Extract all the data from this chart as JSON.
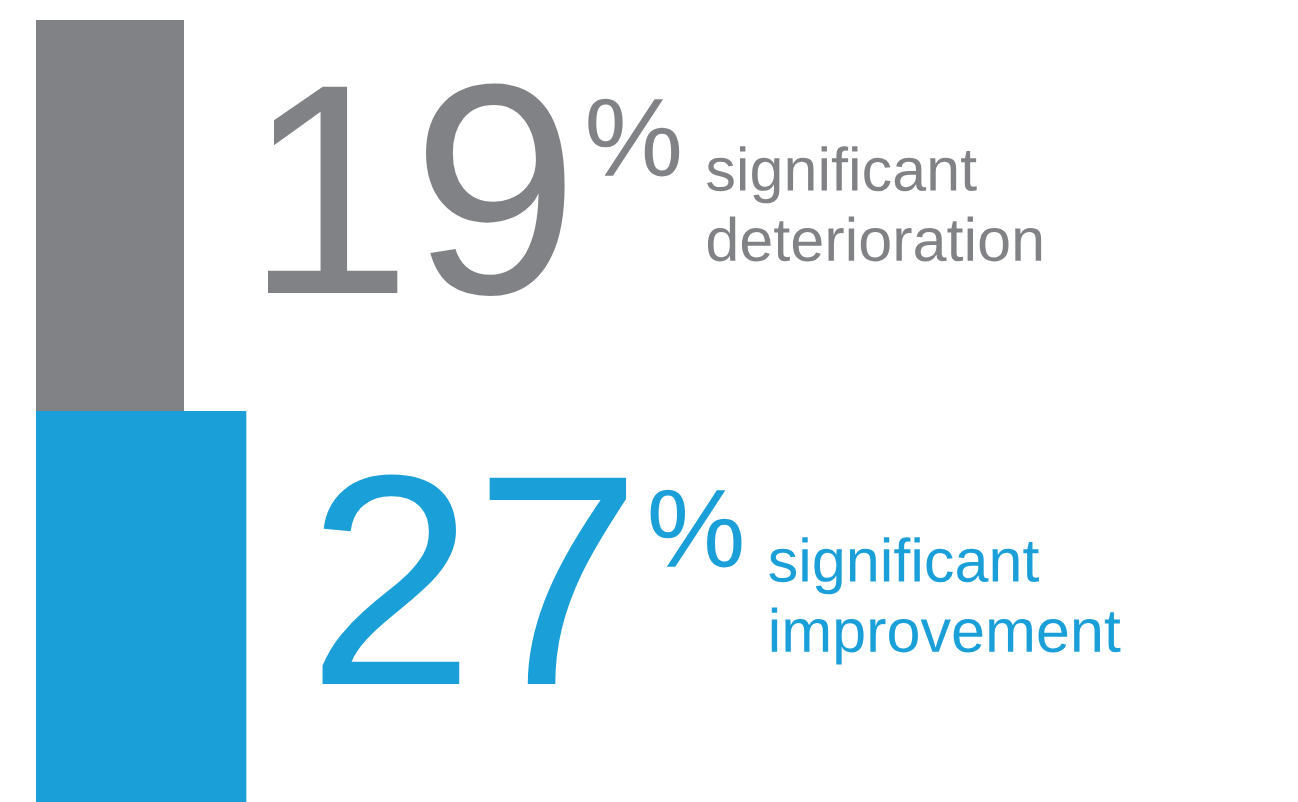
{
  "chart_data": {
    "type": "bar",
    "orientation": "horizontal",
    "categories": [
      null,
      null
    ],
    "annotations": [
      "significant\ndeterioration",
      "significant\nimprovement"
    ],
    "values": [
      19,
      27
    ],
    "colors": [
      "#808285",
      "#1a9fd9"
    ],
    "value_labels": [
      "19%",
      "27%"
    ],
    "tick_labels": false
  }
}
